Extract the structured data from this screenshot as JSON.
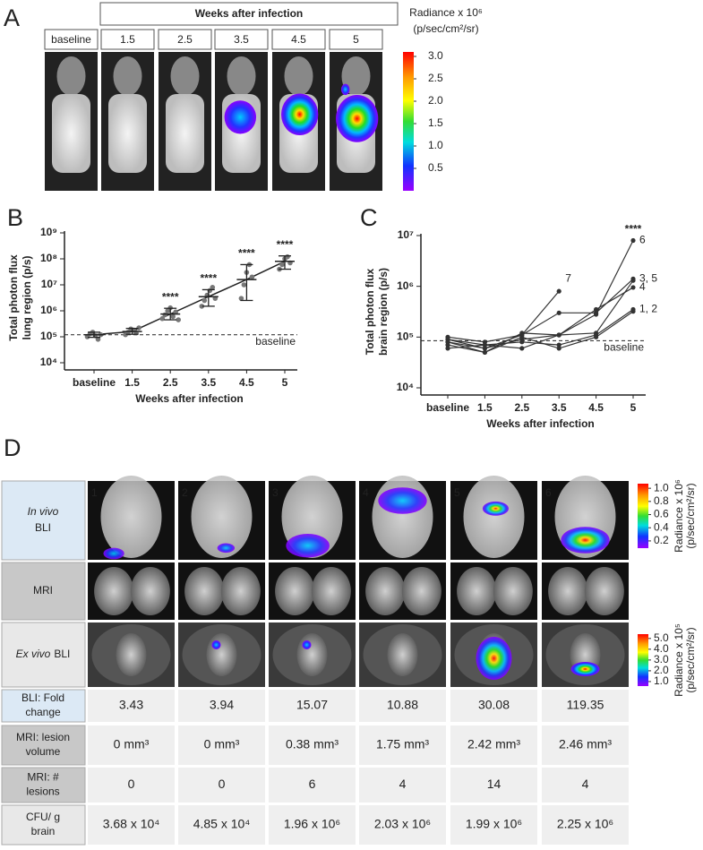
{
  "panel_a": {
    "letter": "A",
    "header": "Weeks after infection",
    "columns": [
      "baseline",
      "1.5",
      "2.5",
      "3.5",
      "4.5",
      "5"
    ],
    "colorbar": {
      "title": "Radiance x 10⁶",
      "unit": "(p/sec/cm²/sr)",
      "range": [
        0,
        3.1
      ],
      "ticks": [
        {
          "value": 3,
          "label": "3.0"
        },
        {
          "value": 2.5,
          "label": "2.5"
        },
        {
          "value": 2,
          "label": "2.0"
        },
        {
          "value": 1.5,
          "label": "1.5"
        },
        {
          "value": 1,
          "label": "1.0"
        },
        {
          "value": 0.5,
          "label": "0.5"
        }
      ]
    }
  },
  "chart_data": [
    {
      "type": "scatter-line",
      "panel": "B",
      "log_y": true,
      "y_label": [
        "Total photon flux",
        "lung region (p/s)"
      ],
      "x_label": "Weeks after infection",
      "categories": [
        "baseline",
        "1.5",
        "2.5",
        "3.5",
        "4.5",
        "5"
      ],
      "ylim": [
        10000,
        1000000000
      ],
      "yticks": [
        {
          "value": 10000,
          "label": "10⁴"
        },
        {
          "value": 100000,
          "label": "10⁵"
        },
        {
          "value": 1000000,
          "label": "10⁶"
        },
        {
          "value": 10000000,
          "label": "10⁷"
        },
        {
          "value": 100000000,
          "label": "10⁸"
        },
        {
          "value": 1000000000,
          "label": "10⁹"
        }
      ],
      "baseline": {
        "value": 120000,
        "label": "baseline"
      },
      "significance": [
        {
          "x": "2.5",
          "text": "****"
        },
        {
          "x": "3.5",
          "text": "****"
        },
        {
          "x": "4.5",
          "text": "****"
        },
        {
          "x": "5",
          "text": "****"
        }
      ],
      "series": [
        {
          "color": "#222222",
          "point_color": "#777777",
          "values": [
            120000,
            160000,
            750000,
            3500000,
            16000000,
            80000000
          ],
          "error_low": [
            95000,
            125000,
            450000,
            1500000,
            2500000,
            40000000
          ],
          "error_high": [
            150000,
            210000,
            1250000,
            6500000,
            60000000,
            130000000
          ],
          "points": [
            [
              100000,
              130000,
              150000,
              110000,
              80000,
              120000
            ],
            [
              120000,
              150000,
              200000,
              180000,
              140000,
              220000
            ],
            [
              500000,
              700000,
              1000000,
              1300000,
              600000,
              900000,
              450000
            ],
            [
              1500000,
              2500000,
              4000000,
              6000000,
              8000000,
              3000000
            ],
            [
              3000000,
              10000000,
              30000000,
              60000000,
              20000000
            ],
            [
              40000000,
              60000000,
              100000000,
              120000000,
              70000000
            ]
          ]
        }
      ]
    },
    {
      "type": "line",
      "panel": "C",
      "log_y": true,
      "y_label": [
        "Total photon flux",
        "brain region (p/s)"
      ],
      "x_label": "Weeks after infection",
      "categories": [
        "baseline",
        "1.5",
        "2.5",
        "3.5",
        "4.5",
        "5"
      ],
      "ylim": [
        10000,
        10000000
      ],
      "yticks": [
        {
          "value": 10000,
          "label": "10⁴"
        },
        {
          "value": 100000,
          "label": "10⁵"
        },
        {
          "value": 1000000,
          "label": "10⁶"
        },
        {
          "value": 10000000,
          "label": "10⁷"
        }
      ],
      "baseline": {
        "value": 85000,
        "label": "baseline"
      },
      "significance": [
        {
          "x": "5",
          "text": "****"
        }
      ],
      "series": [
        {
          "name": "6",
          "color": "#333333",
          "values": [
            90000,
            60000,
            90000,
            110000,
            280000,
            8000000
          ]
        },
        {
          "name": "7",
          "color": "#333333",
          "values": [
            80000,
            60000,
            110000,
            800000,
            null,
            null
          ]
        },
        {
          "name": "3, 5",
          "color": "#333333",
          "values": [
            100000,
            80000,
            110000,
            300000,
            300000,
            1400000
          ]
        },
        {
          "color": "#333333",
          "values": [
            90000,
            70000,
            60000,
            110000,
            120000,
            1300000
          ]
        },
        {
          "name": "4",
          "color": "#333333",
          "values": [
            70000,
            50000,
            120000,
            110000,
            350000,
            950000
          ]
        },
        {
          "name": "1, 2",
          "color": "#333333",
          "values": [
            60000,
            70000,
            80000,
            70000,
            110000,
            350000
          ]
        },
        {
          "color": "#333333",
          "values": [
            80000,
            50000,
            100000,
            60000,
            100000,
            320000
          ]
        }
      ]
    }
  ],
  "panel_d": {
    "letter": "D",
    "image_rows": [
      {
        "italic": "In vivo",
        "text": "BLI",
        "color": "#dce9f5"
      },
      {
        "italic": "",
        "text": "MRI",
        "color": "#c8c8c8"
      },
      {
        "italic": "Ex vivo",
        "text": "BLI",
        "color": "#e8e8e8"
      }
    ],
    "numbers": [
      "1",
      "2",
      "3",
      "4",
      "5",
      "6"
    ],
    "colorbars": [
      {
        "title": "Radiance x 10⁶",
        "unit": "(p/sec/cm²/sr)",
        "range": [
          0.09,
          1.07
        ],
        "ticks": [
          {
            "value": 1,
            "label": "1.0"
          },
          {
            "value": 0.8,
            "label": "0.8"
          },
          {
            "value": 0.6,
            "label": "0.6"
          },
          {
            "value": 0.4,
            "label": "0.4"
          },
          {
            "value": 0.2,
            "label": "0.2"
          }
        ]
      },
      {
        "title": "Radiance x 10⁵",
        "unit": "(p/sec/cm²/sr)",
        "range": [
          0.58,
          5.4
        ],
        "ticks": [
          {
            "value": 5,
            "label": "5.0"
          },
          {
            "value": 4,
            "label": "4.0"
          },
          {
            "value": 3,
            "label": "3.0"
          },
          {
            "value": 2,
            "label": "2.0"
          },
          {
            "value": 1,
            "label": "1.0"
          }
        ]
      }
    ],
    "table": [
      {
        "header": [
          "BLI: Fold",
          "change"
        ],
        "color": "#dce9f5",
        "cells": [
          "3.43",
          "3.94",
          "15.07",
          "10.88",
          "30.08",
          "119.35"
        ]
      },
      {
        "header": [
          "MRI: lesion",
          "volume"
        ],
        "color": "#c8c8c8",
        "cells": [
          "0 mm³",
          "0 mm³",
          "0.38 mm³",
          "1.75 mm³",
          "2.42 mm³",
          "2.46 mm³"
        ]
      },
      {
        "header": [
          "MRI: #",
          "lesions"
        ],
        "color": "#c8c8c8",
        "cells": [
          "0",
          "0",
          "6",
          "4",
          "14",
          "4"
        ]
      },
      {
        "header": [
          "CFU/ g",
          "brain"
        ],
        "color": "#e8e8e8",
        "cells": [
          "3.68 x 10⁴",
          "4.85 x 10⁴",
          "1.96 x 10⁶",
          "2.03 x 10⁶",
          "1.99 x 10⁶",
          "2.25 x 10⁶"
        ]
      }
    ]
  }
}
